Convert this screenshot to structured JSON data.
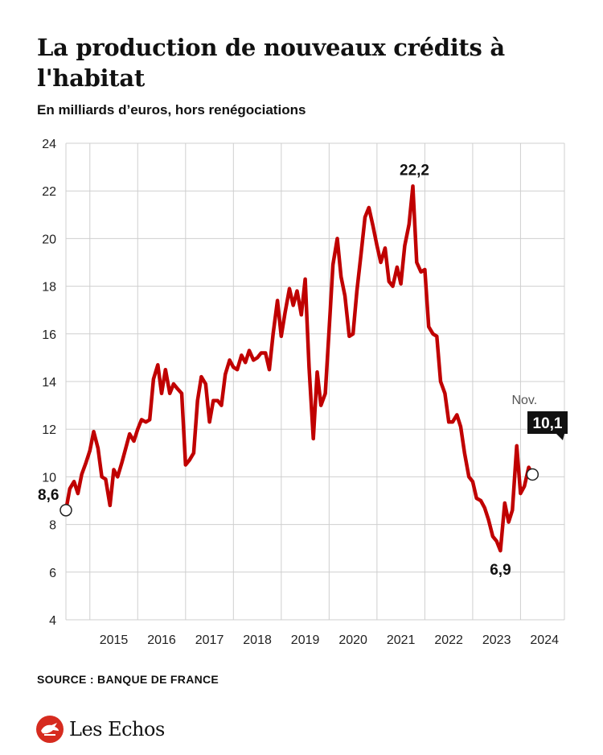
{
  "header": {
    "title": "La production de nouveaux crédits à l'habitat",
    "subtitle": "En milliards d’euros, hors renégociations"
  },
  "footer": {
    "source": "SOURCE : BANQUE DE FRANCE",
    "brand": "Les Echos"
  },
  "colors": {
    "line": "#c00000",
    "grid": "#cfcfcf",
    "text": "#111111",
    "brand_red": "#d62b1f"
  },
  "chart_data": {
    "type": "line",
    "ylim": [
      4,
      24
    ],
    "yticks": [
      4,
      6,
      8,
      10,
      12,
      14,
      16,
      18,
      20,
      22,
      24
    ],
    "xlim": [
      2014.5,
      2024.9167
    ],
    "year_labels": [
      "2015",
      "2016",
      "2017",
      "2018",
      "2019",
      "2020",
      "2021",
      "2022",
      "2023",
      "2024"
    ],
    "grid": true,
    "series": [
      {
        "points": [
          [
            2014.5,
            8.6
          ],
          [
            2014.58,
            9.5
          ],
          [
            2014.67,
            9.8
          ],
          [
            2014.75,
            9.3
          ],
          [
            2014.83,
            10.1
          ],
          [
            2014.92,
            10.6
          ],
          [
            2015.0,
            11.1
          ],
          [
            2015.08,
            11.9
          ],
          [
            2015.17,
            11.2
          ],
          [
            2015.25,
            10.0
          ],
          [
            2015.33,
            9.9
          ],
          [
            2015.42,
            8.8
          ],
          [
            2015.5,
            10.3
          ],
          [
            2015.58,
            10.0
          ],
          [
            2015.67,
            10.6
          ],
          [
            2015.75,
            11.2
          ],
          [
            2015.83,
            11.8
          ],
          [
            2015.92,
            11.5
          ],
          [
            2016.0,
            12.0
          ],
          [
            2016.08,
            12.4
          ],
          [
            2016.17,
            12.3
          ],
          [
            2016.25,
            12.4
          ],
          [
            2016.33,
            14.1
          ],
          [
            2016.42,
            14.7
          ],
          [
            2016.5,
            13.5
          ],
          [
            2016.58,
            14.5
          ],
          [
            2016.67,
            13.5
          ],
          [
            2016.75,
            13.9
          ],
          [
            2016.83,
            13.7
          ],
          [
            2016.92,
            13.5
          ],
          [
            2017.0,
            10.5
          ],
          [
            2017.08,
            10.7
          ],
          [
            2017.17,
            11.0
          ],
          [
            2017.25,
            13.2
          ],
          [
            2017.33,
            14.2
          ],
          [
            2017.42,
            13.9
          ],
          [
            2017.5,
            12.3
          ],
          [
            2017.58,
            13.2
          ],
          [
            2017.67,
            13.2
          ],
          [
            2017.75,
            13.0
          ],
          [
            2017.83,
            14.3
          ],
          [
            2017.92,
            14.9
          ],
          [
            2018.0,
            14.6
          ],
          [
            2018.08,
            14.5
          ],
          [
            2018.17,
            15.1
          ],
          [
            2018.25,
            14.8
          ],
          [
            2018.33,
            15.3
          ],
          [
            2018.42,
            14.9
          ],
          [
            2018.5,
            15.0
          ],
          [
            2018.58,
            15.2
          ],
          [
            2018.67,
            15.2
          ],
          [
            2018.75,
            14.5
          ],
          [
            2018.83,
            16.0
          ],
          [
            2018.92,
            17.4
          ],
          [
            2019.0,
            15.9
          ],
          [
            2019.08,
            16.9
          ],
          [
            2019.17,
            17.9
          ],
          [
            2019.25,
            17.2
          ],
          [
            2019.33,
            17.8
          ],
          [
            2019.42,
            16.8
          ],
          [
            2019.5,
            18.3
          ],
          [
            2019.58,
            14.6
          ],
          [
            2019.67,
            11.6
          ],
          [
            2019.75,
            14.4
          ],
          [
            2019.83,
            13.0
          ],
          [
            2019.92,
            13.5
          ],
          [
            2020.0,
            16.2
          ],
          [
            2020.08,
            18.9
          ],
          [
            2020.17,
            20.0
          ],
          [
            2020.25,
            18.4
          ],
          [
            2020.33,
            17.6
          ],
          [
            2020.42,
            15.9
          ],
          [
            2020.5,
            16.0
          ],
          [
            2020.58,
            17.8
          ],
          [
            2020.67,
            19.4
          ],
          [
            2020.75,
            20.9
          ],
          [
            2020.83,
            21.3
          ],
          [
            2020.92,
            20.5
          ],
          [
            2021.0,
            19.7
          ],
          [
            2021.08,
            19.0
          ],
          [
            2021.17,
            19.6
          ],
          [
            2021.25,
            18.2
          ],
          [
            2021.33,
            18.0
          ],
          [
            2021.42,
            18.8
          ],
          [
            2021.5,
            18.1
          ],
          [
            2021.58,
            19.7
          ],
          [
            2021.67,
            20.6
          ],
          [
            2021.75,
            22.2
          ],
          [
            2021.83,
            19.0
          ],
          [
            2021.92,
            18.6
          ],
          [
            2022.0,
            18.7
          ],
          [
            2022.08,
            16.3
          ],
          [
            2022.17,
            16.0
          ],
          [
            2022.25,
            15.9
          ],
          [
            2022.33,
            14.0
          ],
          [
            2022.42,
            13.5
          ],
          [
            2022.5,
            12.3
          ],
          [
            2022.58,
            12.3
          ],
          [
            2022.67,
            12.6
          ],
          [
            2022.75,
            12.1
          ],
          [
            2022.83,
            11.0
          ],
          [
            2022.92,
            10.0
          ],
          [
            2023.0,
            9.8
          ],
          [
            2023.08,
            9.1
          ],
          [
            2023.17,
            9.0
          ],
          [
            2023.25,
            8.7
          ],
          [
            2023.33,
            8.2
          ],
          [
            2023.42,
            7.5
          ],
          [
            2023.5,
            7.3
          ],
          [
            2023.58,
            6.9
          ],
          [
            2023.67,
            8.9
          ],
          [
            2023.75,
            8.1
          ],
          [
            2023.83,
            8.6
          ],
          [
            2023.92,
            11.3
          ],
          [
            2024.0,
            9.3
          ],
          [
            2024.08,
            9.6
          ],
          [
            2024.17,
            10.4
          ],
          [
            2024.25,
            10.1
          ]
        ]
      }
    ],
    "annotations": [
      {
        "label": "8,6",
        "x": 2014.5,
        "y": 8.6,
        "marker": true
      },
      {
        "label": "22,2",
        "x": 2021.75,
        "y": 22.2
      },
      {
        "label": "6,9",
        "x": 2023.58,
        "y": 6.9
      },
      {
        "label": "10,1",
        "prefix": "Nov.",
        "x": 2024.25,
        "y": 10.1,
        "marker": true,
        "boxed": true
      }
    ]
  }
}
